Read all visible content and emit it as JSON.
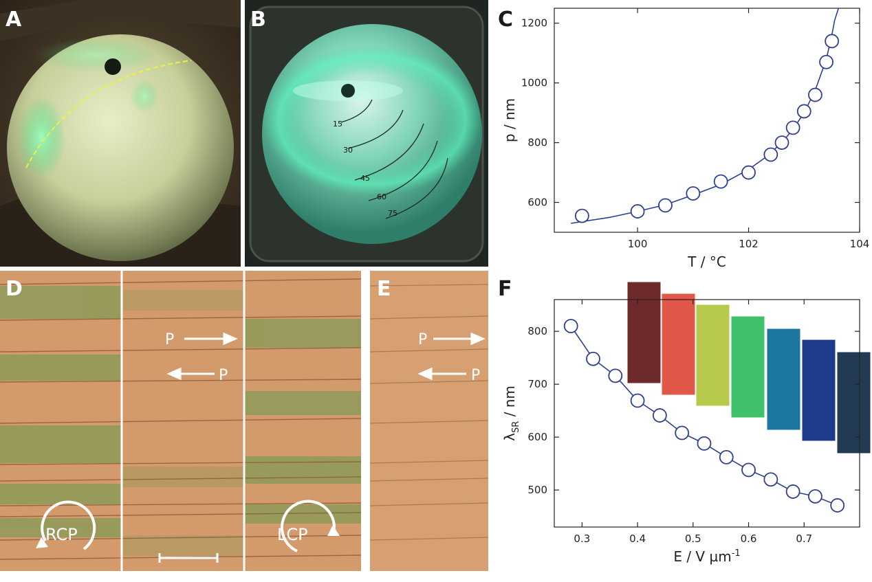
{
  "figure": {
    "panel_labels": [
      "A",
      "B",
      "C",
      "D",
      "E",
      "F"
    ],
    "panel_b_angles": [
      "15",
      "30",
      "45",
      "60",
      "75"
    ],
    "panel_d": {
      "polarizer_labels": [
        "P",
        "P"
      ],
      "circular_labels": [
        "RCP",
        "LCP"
      ]
    },
    "panel_e": {
      "polarizer_labels": [
        "P",
        "P"
      ]
    },
    "colors": {
      "curve": "#2d3f8f",
      "marker_fill": "#ffffff",
      "micrograph": "#d39a6b",
      "micrograph_green": "#8e9a5a",
      "hemisphere_glow": "#43e0a0"
    },
    "panel_f_swatches": [
      "#6e2a2a",
      "#e2574a",
      "#b7c94a",
      "#3fc06a",
      "#1c78a0",
      "#1f3c8c",
      "#233a55"
    ]
  },
  "chart_data": [
    {
      "id": "C",
      "type": "scatter",
      "title": "",
      "xlabel": "T / °C",
      "ylabel": "p / nm",
      "xlim": [
        98.5,
        104
      ],
      "ylim": [
        500,
        1250
      ],
      "xticks": [
        "100",
        "102",
        "104"
      ],
      "yticks": [
        "600",
        "800",
        "1000",
        "1200"
      ],
      "x": [
        99.0,
        100.0,
        100.5,
        101.0,
        101.5,
        102.0,
        102.4,
        102.6,
        102.8,
        103.0,
        103.2,
        103.4,
        103.5
      ],
      "y": [
        555,
        570,
        590,
        630,
        670,
        700,
        760,
        800,
        850,
        905,
        960,
        1070,
        1140
      ],
      "fit_line": {
        "x": [
          98.8,
          99.5,
          100.0,
          100.5,
          101.0,
          101.5,
          102.0,
          102.3,
          102.6,
          102.8,
          103.0,
          103.2,
          103.4,
          103.5,
          103.55,
          103.62
        ],
        "y": [
          530,
          550,
          570,
          592,
          625,
          660,
          710,
          750,
          800,
          845,
          900,
          975,
          1080,
          1160,
          1210,
          1250
        ]
      },
      "grid": false
    },
    {
      "id": "F",
      "type": "scatter",
      "title": "",
      "xlabel": "E / V µm",
      "xlabel_sup": "-1",
      "ylabel": "λ",
      "ylabel_sub": "SR",
      "ylabel_unit": " / nm",
      "xlim": [
        0.25,
        0.8
      ],
      "ylim": [
        430,
        860
      ],
      "xticks": [
        "0.3",
        "0.4",
        "0.5",
        "0.6",
        "0.7"
      ],
      "yticks": [
        "500",
        "600",
        "700",
        "800"
      ],
      "x": [
        0.28,
        0.32,
        0.36,
        0.4,
        0.44,
        0.48,
        0.52,
        0.56,
        0.6,
        0.64,
        0.68,
        0.72,
        0.76
      ],
      "y": [
        810,
        748,
        716,
        669,
        641,
        608,
        588,
        562,
        538,
        520,
        497,
        488,
        471
      ],
      "grid": false
    }
  ]
}
